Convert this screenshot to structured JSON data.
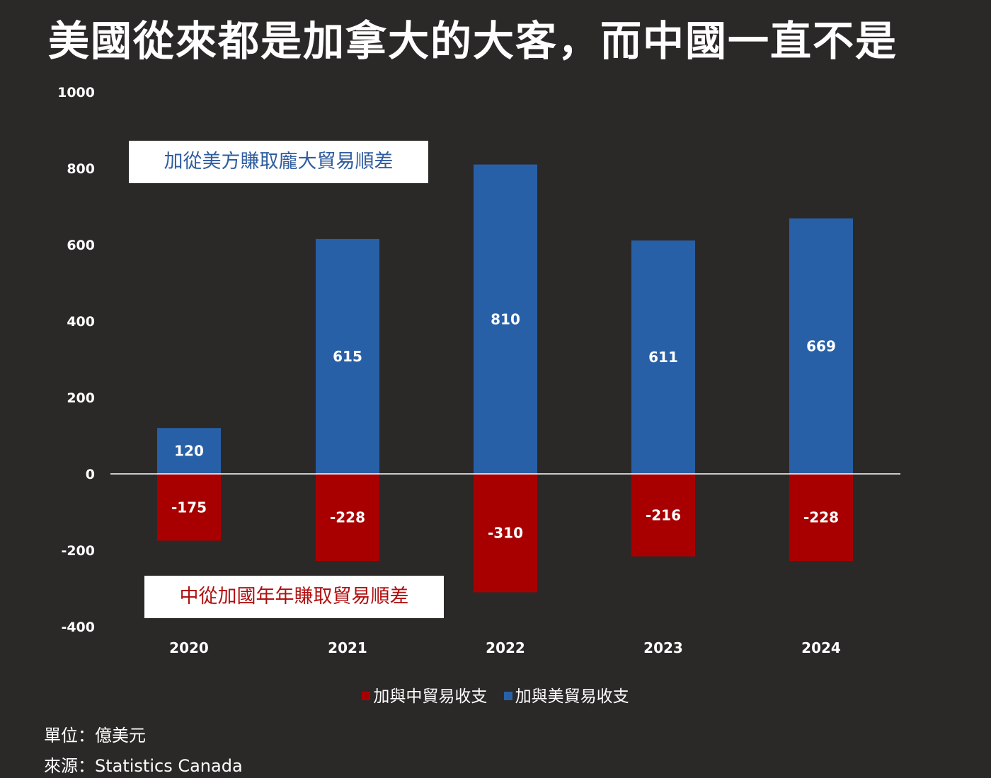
{
  "title": "美國從來都是加拿大的大客，而中國一直不是",
  "annotations": {
    "us": "加從美方賺取龐大貿易順差",
    "china": "中從加國年年賺取貿易順差"
  },
  "footer": {
    "unit": "單位：億美元",
    "source": "來源：Statistics Canada"
  },
  "colors": {
    "background": "#2b2928",
    "china_series": "#a80000",
    "us_series": "#2860a8",
    "text": "#ffffff"
  },
  "chart_data": {
    "type": "bar",
    "categories": [
      "2020",
      "2021",
      "2022",
      "2023",
      "2024"
    ],
    "series": [
      {
        "name": "加與中貿易收支",
        "values": [
          -175,
          -228,
          -310,
          -216,
          -228
        ],
        "color": "#a80000"
      },
      {
        "name": "加與美貿易收支",
        "values": [
          120,
          615,
          810,
          611,
          669
        ],
        "color": "#2860a8"
      }
    ],
    "y_ticks": [
      "1000",
      "800",
      "600",
      "400",
      "200",
      "0",
      "-200",
      "-400"
    ],
    "ylim": [
      -400,
      1000
    ],
    "grid": false,
    "legend_position": "bottom"
  }
}
